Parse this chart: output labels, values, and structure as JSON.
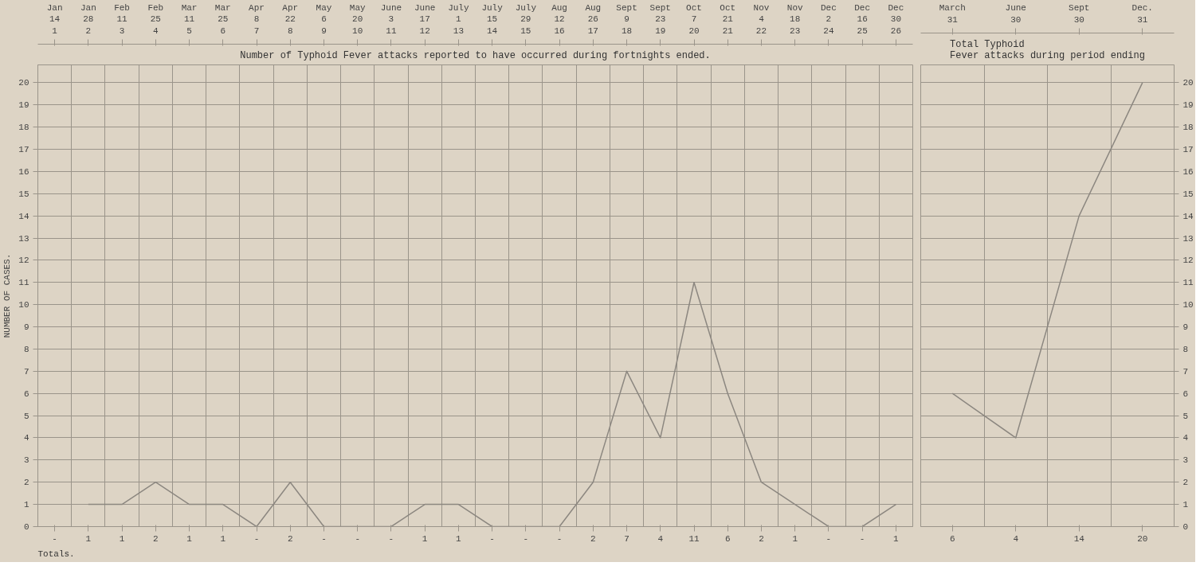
{
  "chart_data": [
    {
      "type": "line",
      "title": "Number of Typhoid Fever attacks reported to have occurred during fortnights ended.",
      "ylabel": "NUMBER OF CASES.",
      "categories": [
        "Jan\n14\n1",
        "Jan\n28\n2",
        "Feb\n11\n3",
        "Feb\n25\n4",
        "Mar\n11\n5",
        "Mar\n25\n6",
        "Apr\n8\n7",
        "Apr\n22\n8",
        "May\n6\n9",
        "May\n20\n10",
        "June\n3\n11",
        "June\n17\n12",
        "July\n1\n13",
        "July\n15\n14",
        "July\n29\n15",
        "Aug\n12\n16",
        "Aug\n26\n17",
        "Sept\n9\n18",
        "Sept\n23\n19",
        "Oct\n7\n20",
        "Oct\n21\n21",
        "Nov\n4\n22",
        "Nov\n18\n23",
        "Dec\n2\n24",
        "Dec\n16\n25",
        "Dec\n30\n26"
      ],
      "series": [
        {
          "color": "#8c8780",
          "values": [
            null,
            1,
            1,
            2,
            1,
            1,
            0,
            2,
            0,
            0,
            0,
            1,
            1,
            0,
            0,
            0,
            2,
            7,
            4,
            11,
            6,
            2,
            1,
            0,
            0,
            1
          ],
          "value_labels": [
            "-",
            "1",
            "1",
            "2",
            "1",
            "1",
            "-",
            "2",
            "-",
            "-",
            "-",
            "1",
            "1",
            "-",
            "-",
            "-",
            "2",
            "7",
            "4",
            "11",
            "6",
            "2",
            "1",
            "-",
            "-",
            "1"
          ]
        }
      ],
      "ylim": [
        0,
        20.8
      ],
      "yticks": [
        0,
        1,
        2,
        3,
        4,
        5,
        6,
        7,
        8,
        9,
        10,
        11,
        12,
        13,
        14,
        15,
        16,
        17,
        18,
        19,
        20
      ],
      "annotations": [
        "Totals."
      ],
      "grid": true,
      "marker": "none",
      "line_style": "solid"
    },
    {
      "type": "line",
      "title": "Total Typhoid Fever attacks during period ending",
      "categories": [
        "March\n31",
        "June\n30",
        "Sept\n30",
        "Dec.\n31"
      ],
      "series": [
        {
          "color": "#8c8780",
          "values": [
            6,
            4,
            14,
            20
          ],
          "value_labels": [
            "6",
            "4",
            "14",
            "20"
          ]
        }
      ],
      "ylim": [
        0,
        20.8
      ],
      "yticks": [
        0,
        1,
        2,
        3,
        4,
        5,
        6,
        7,
        8,
        9,
        10,
        11,
        12,
        13,
        14,
        15,
        16,
        17,
        18,
        19,
        20
      ],
      "grid": true,
      "marker": "none",
      "line_style": "solid"
    }
  ]
}
